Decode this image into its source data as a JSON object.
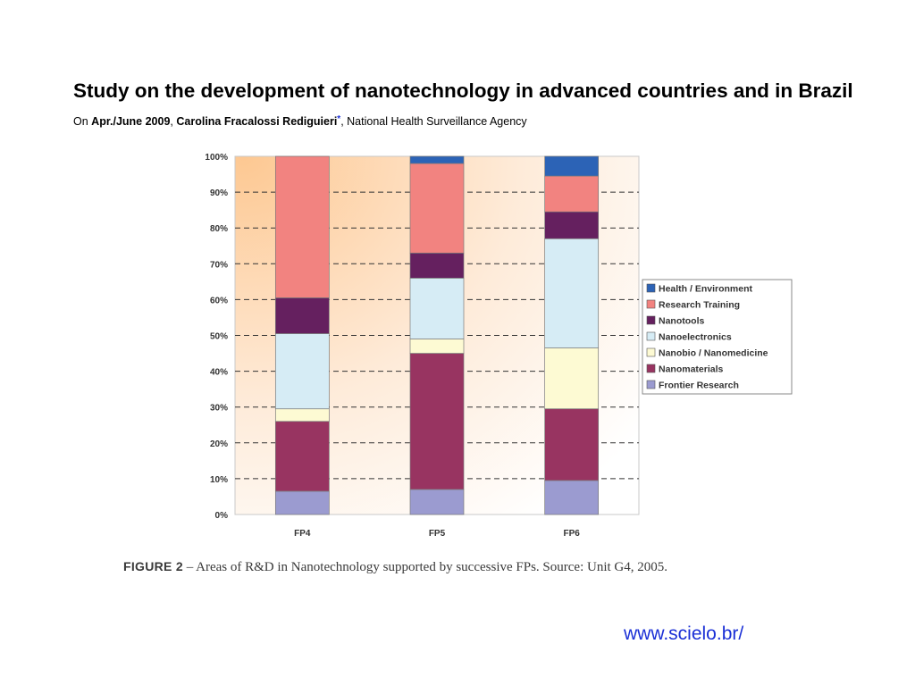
{
  "slide": {
    "title": "Study on the development of nanotechnology in advanced countries and in Brazil",
    "byline_prefix": "On",
    "byline_date": "Apr./June 2009",
    "byline_author": "Carolina Fracalossi Rediguieri",
    "byline_mark": "*",
    "byline_agency": ", National Health Surveillance Agency"
  },
  "caption": {
    "label": "FIGURE 2",
    "text": " – Areas of R&D in Nanotechnology supported by successive FPs. Source: Unit G4, 2005."
  },
  "link": {
    "text": "www.scielo.br/"
  },
  "chart_data": {
    "type": "bar",
    "stacked": true,
    "categories": [
      "FP4",
      "FP5",
      "FP6"
    ],
    "y_ticks": [
      "0%",
      "10%",
      "20%",
      "30%",
      "40%",
      "50%",
      "60%",
      "70%",
      "80%",
      "90%",
      "100%"
    ],
    "ylim": [
      0,
      100
    ],
    "grid": "dashed horizontal",
    "legend_position": "right",
    "colors": {
      "Frontier Research": "#9b9bd0",
      "Nanomaterials": "#983461",
      "Nanobio / Nanomedicine": "#fdfad3",
      "Nanoelectronics": "#d6ecf5",
      "Nanotools": "#65205f",
      "Research Training": "#f28380",
      "Health / Environment": "#2c63b6"
    },
    "series": [
      {
        "name": "Frontier Research",
        "values": [
          6.5,
          7,
          9.5
        ]
      },
      {
        "name": "Nanomaterials",
        "values": [
          19.5,
          38,
          20
        ]
      },
      {
        "name": "Nanobio / Nanomedicine",
        "values": [
          3.5,
          4,
          17
        ]
      },
      {
        "name": "Nanoelectronics",
        "values": [
          21,
          17,
          30.5
        ]
      },
      {
        "name": "Nanotools",
        "values": [
          10,
          7,
          7.5
        ]
      },
      {
        "name": "Research Training",
        "values": [
          39.5,
          25,
          10
        ]
      },
      {
        "name": "Health / Environment",
        "values": [
          0,
          2,
          5.5
        ]
      }
    ],
    "legend_order": [
      "Health / Environment",
      "Research Training",
      "Nanotools",
      "Nanoelectronics",
      "Nanobio / Nanomedicine",
      "Nanomaterials",
      "Frontier Research"
    ]
  }
}
